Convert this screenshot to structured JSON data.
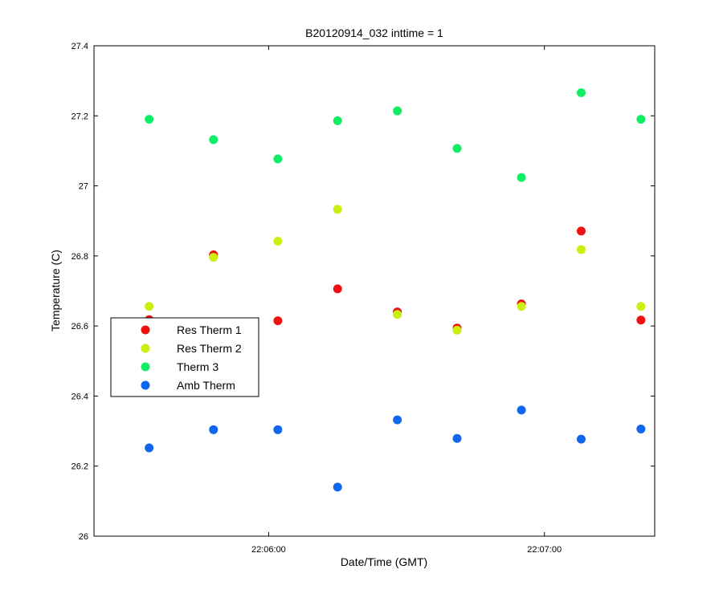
{
  "chart_data": {
    "type": "scatter",
    "title": "B20120914_032 inttime = 1",
    "xlabel": "Date/Time (GMT)",
    "ylabel": "Temperature (C)",
    "xlim": [
      "22:05:22",
      "22:07:24"
    ],
    "ylim": [
      26.0,
      27.4
    ],
    "x_ticks": [
      "22:06:00",
      "22:07:00"
    ],
    "y_ticks": [
      "26",
      "26.2",
      "26.4",
      "26.6",
      "26.8",
      "27",
      "27.2",
      "27.4"
    ],
    "grid": false,
    "legend": {
      "placement": "middle-left"
    },
    "x": [
      "22:05:34",
      "22:05:48",
      "22:06:02",
      "22:06:15",
      "22:06:28",
      "22:06:41",
      "22:06:55",
      "22:07:08",
      "22:07:21"
    ],
    "series": [
      {
        "name": "Res Therm 1",
        "color": "#ee1111",
        "values": [
          26.618,
          26.803,
          26.615,
          26.706,
          26.64,
          26.594,
          26.663,
          26.871,
          26.617
        ]
      },
      {
        "name": "Res Therm 2",
        "color": "#ccee11",
        "values": [
          26.656,
          26.796,
          26.842,
          26.933,
          26.633,
          26.588,
          26.656,
          26.818,
          26.656
        ]
      },
      {
        "name": "Therm 3",
        "color": "#11ee66",
        "values": [
          27.19,
          27.132,
          27.077,
          27.186,
          27.214,
          27.107,
          27.024,
          27.266,
          27.19
        ]
      },
      {
        "name": "Amb Therm",
        "color": "#1166ee",
        "values": [
          26.252,
          26.304,
          26.304,
          26.14,
          26.332,
          26.279,
          26.36,
          26.277,
          26.306
        ]
      }
    ]
  }
}
